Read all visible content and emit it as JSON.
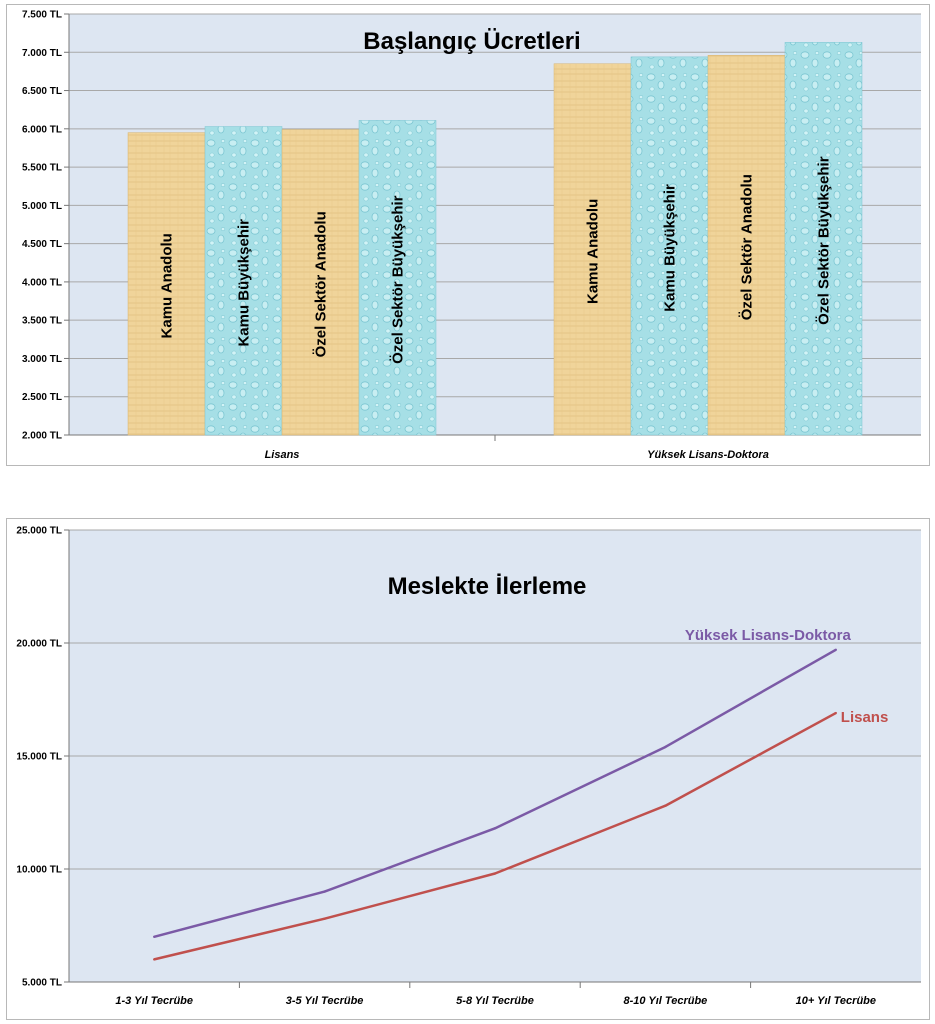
{
  "chart_data": [
    {
      "type": "bar",
      "title": "Başlangıç Ücretleri",
      "categories": [
        "Lisans",
        "Yüksek Lisans-Doktora"
      ],
      "series": [
        {
          "name": "Kamu Anadolu",
          "values": [
            5950,
            6850
          ],
          "texture": "papyrus"
        },
        {
          "name": "Kamu Büyükşehir",
          "values": [
            6030,
            6940
          ],
          "texture": "water"
        },
        {
          "name": "Özel Sektör Anadolu",
          "values": [
            5990,
            6960
          ],
          "texture": "papyrus"
        },
        {
          "name": "Özel Sektör Büyükşehir",
          "values": [
            6110,
            7130
          ],
          "texture": "water"
        }
      ],
      "yticks": [
        "2.000 TL",
        "2.500 TL",
        "3.000 TL",
        "3.500 TL",
        "4.000 TL",
        "4.500 TL",
        "5.000 TL",
        "5.500 TL",
        "6.000 TL",
        "6.500 TL",
        "7.000 TL",
        "7.500 TL"
      ],
      "ylim": [
        2000,
        7500
      ],
      "ystep": 500,
      "grid": true,
      "legend": "labels-in-bars",
      "colors": {
        "plot_bg": "#dde6f2",
        "papyrus": "#f0d49a",
        "papyrus_dark": "#d9b46e",
        "water": "#a6dfe6",
        "water_dark": "#7cc6d2",
        "grid": "#a8a8a8"
      }
    },
    {
      "type": "line",
      "title": "Meslekte İlerleme",
      "categories": [
        "1-3 Yıl Tecrübe",
        "3-5 Yıl Tecrübe",
        "5-8 Yıl Tecrübe",
        "8-10 Yıl Tecrübe",
        "10+ Yıl Tecrübe"
      ],
      "series": [
        {
          "name": "Yüksek Lisans-Doktora",
          "values": [
            7000,
            9000,
            11800,
            15400,
            19700
          ],
          "color": "#7b5aa6"
        },
        {
          "name": "Lisans",
          "values": [
            6000,
            7800,
            9800,
            12800,
            16900
          ],
          "color": "#c0504d"
        }
      ],
      "yticks": [
        "5.000 TL",
        "10.000 TL",
        "15.000 TL",
        "20.000 TL",
        "25.000 TL"
      ],
      "ylim": [
        5000,
        25000
      ],
      "ystep": 5000,
      "grid": true,
      "legend": "labels-at-line-ends",
      "colors": {
        "plot_bg": "#dde6f2",
        "grid": "#a8a8a8"
      }
    }
  ]
}
